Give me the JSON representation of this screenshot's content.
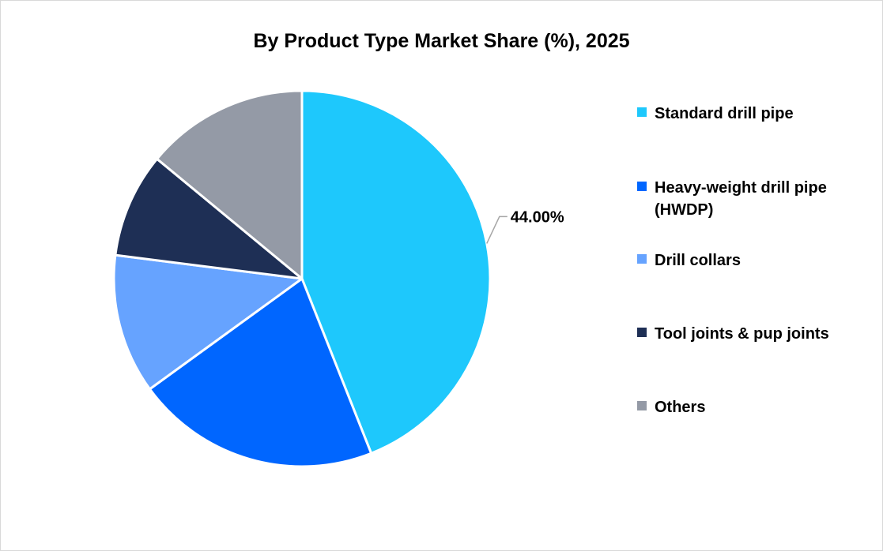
{
  "chart_data": {
    "type": "pie",
    "title": "By Product Type Market Share (%), 2025",
    "categories": [
      "Standard drill pipe",
      "Heavy-weight drill pipe (HWDP)",
      "Drill collars",
      "Tool joints & pup joints",
      "Others"
    ],
    "values": [
      44.0,
      21.0,
      12.0,
      9.0,
      14.0
    ],
    "colors": [
      "#1ec8fc",
      "#0066ff",
      "#66a3ff",
      "#1e2f55",
      "#949aa6"
    ],
    "data_labels": [
      "44.00%",
      "",
      "",
      "",
      ""
    ],
    "legend_position": "right",
    "start_angle_deg": 0,
    "direction": "clockwise"
  }
}
